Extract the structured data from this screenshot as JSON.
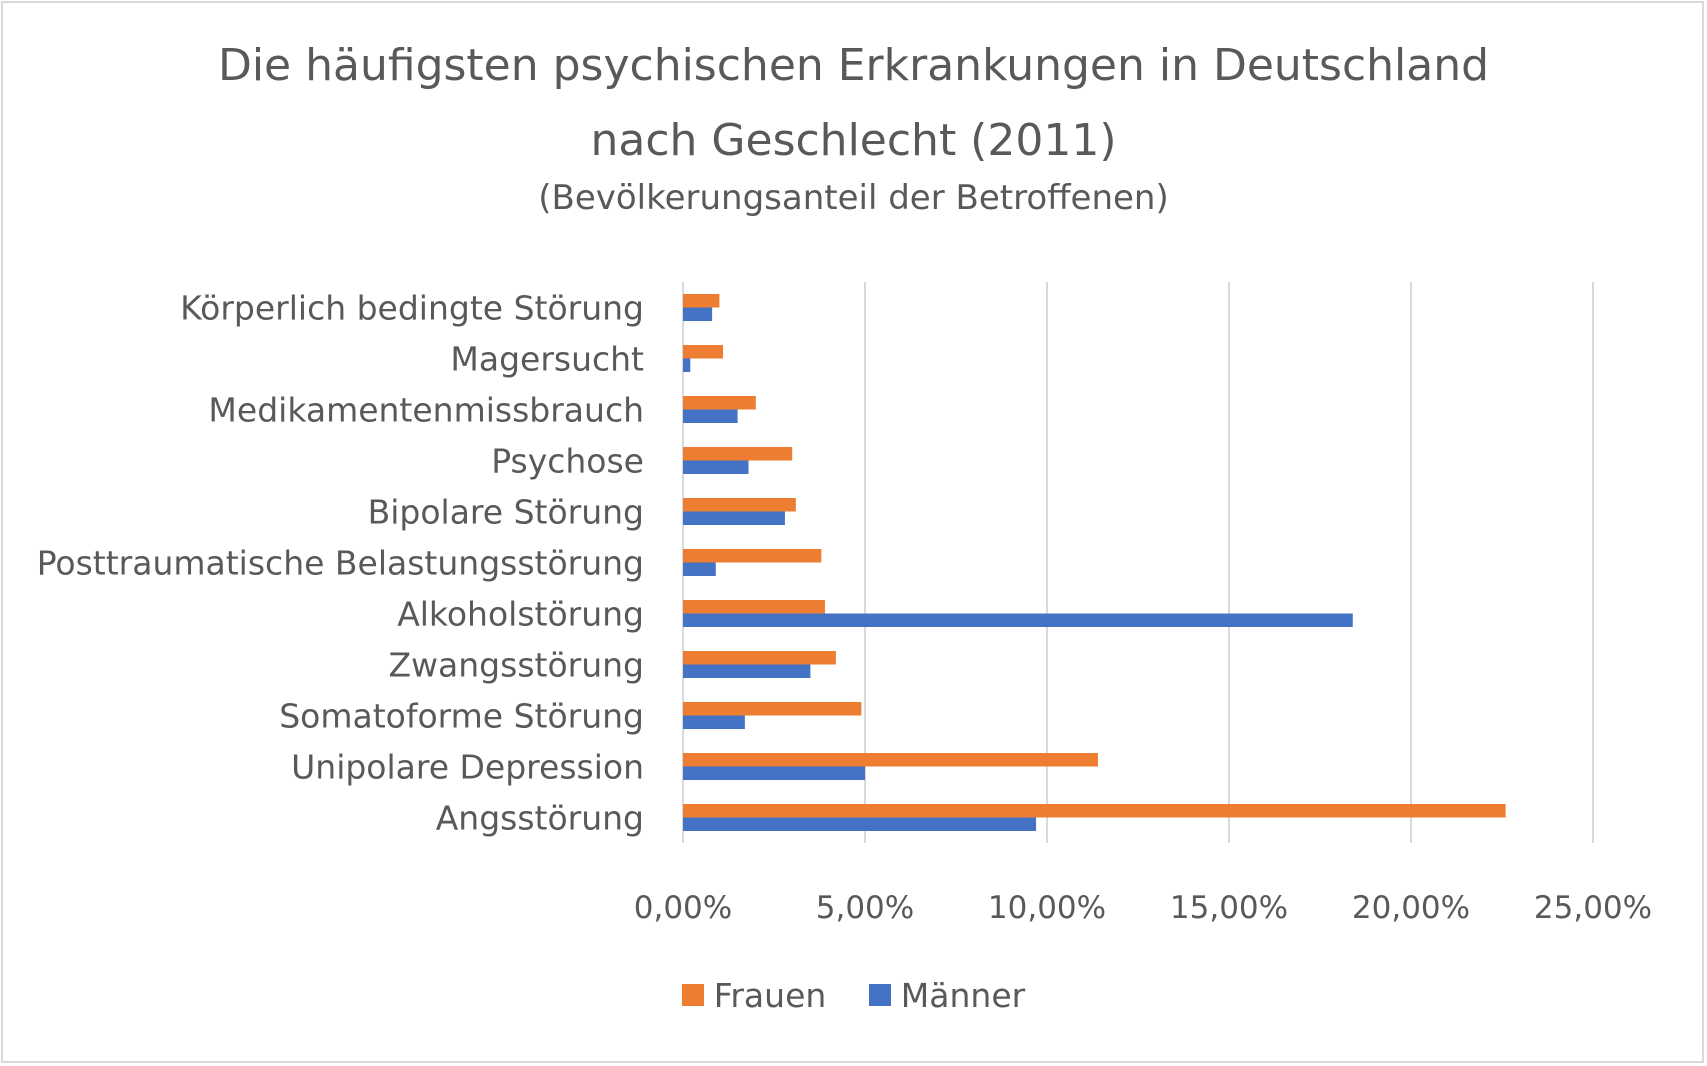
{
  "chart_data": {
    "type": "bar",
    "orientation": "horizontal",
    "title_line1": "Die häufigsten psychischen Erkrankungen in Deutschland",
    "title_line2": "nach Geschlecht (2011)",
    "subtitle": "(Bevölkerungsanteil der Betroffenen)",
    "categories": [
      "Körperlich bedingte Störung",
      "Magersucht",
      "Medikamentenmissbrauch",
      "Psychose",
      "Bipolare Störung",
      "Posttraumatische Belastungsstörung",
      "Alkoholstörung",
      "Zwangsstörung",
      "Somatoforme Störung",
      "Unipolare Depression",
      "Angsstörung"
    ],
    "series": [
      {
        "name": "Frauen",
        "color": "#ed7d31",
        "values": [
          1.0,
          1.1,
          2.0,
          3.0,
          3.1,
          3.8,
          3.9,
          4.2,
          4.9,
          11.4,
          22.6
        ]
      },
      {
        "name": "Männer",
        "color": "#4472c4",
        "values": [
          0.8,
          0.2,
          1.5,
          1.8,
          2.8,
          0.9,
          18.4,
          3.5,
          1.7,
          5.0,
          9.7
        ]
      }
    ],
    "xlim": [
      0,
      25
    ],
    "xticks": [
      "0,00%",
      "5,00%",
      "10,00%",
      "15,00%",
      "20,00%",
      "25,00%"
    ],
    "grid": true,
    "legend_position": "bottom"
  }
}
